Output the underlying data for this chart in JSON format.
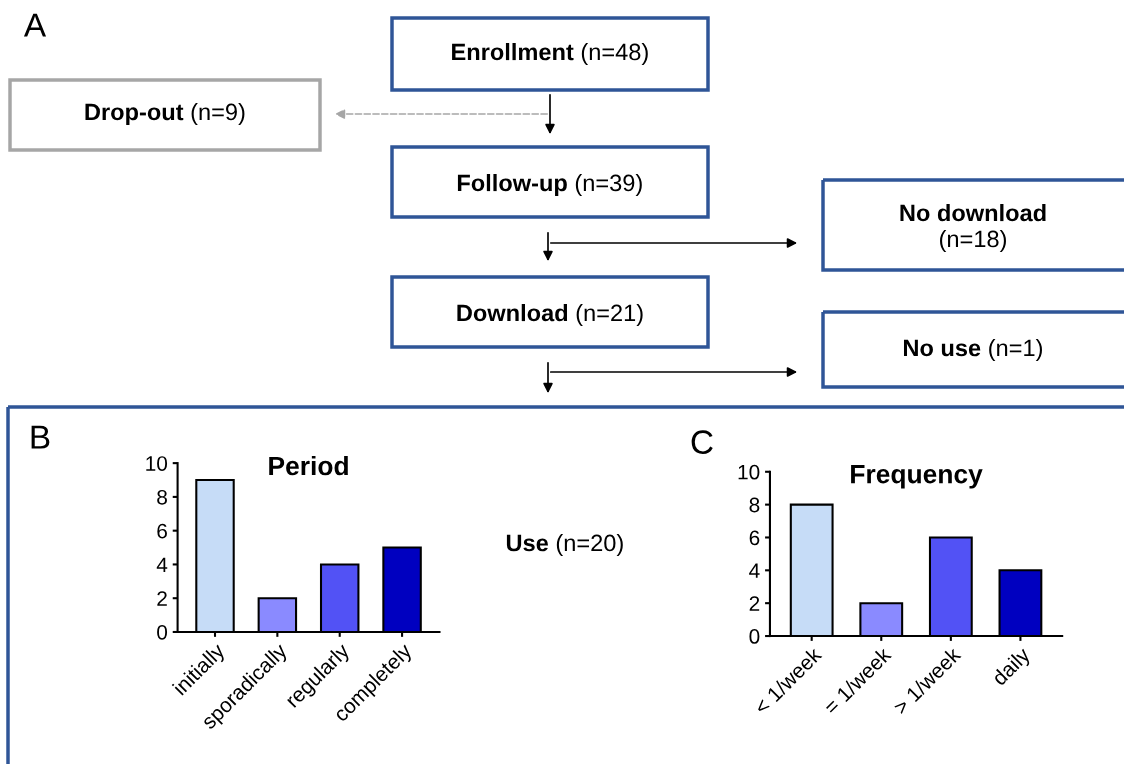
{
  "chart_data": [
    {
      "type": "other",
      "annotations": [
        "A",
        "Enrollment (n=48)",
        "Drop-out (n=9)",
        "Follow-up (n=39)",
        "No download\n(n=18)",
        "Download (n=21)",
        "No use (n=1)",
        "Use (n=20)"
      ]
    },
    {
      "type": "bar",
      "title": "Period",
      "annotations": [
        "B"
      ],
      "categories": [
        "initially",
        "sporadically",
        "regularly",
        "completely"
      ],
      "values": [
        9,
        2,
        4,
        5
      ],
      "colors": [
        "#c6dcf7",
        "#8a8aff",
        "#5252f5",
        "#0000c0"
      ],
      "ylim": [
        0,
        10
      ],
      "yticks": [
        0,
        2,
        4,
        6,
        8,
        10
      ],
      "grid": false
    },
    {
      "type": "bar",
      "title": "Frequency",
      "annotations": [
        "C"
      ],
      "categories": [
        "< 1/week",
        "= 1/week",
        "> 1/week",
        "daily"
      ],
      "values": [
        8,
        2,
        6,
        4
      ],
      "colors": [
        "#c6dcf7",
        "#8a8aff",
        "#5252f5",
        "#0000c0"
      ],
      "ylim": [
        0,
        10
      ],
      "yticks": [
        0,
        2,
        4,
        6,
        8,
        10
      ],
      "grid": false
    }
  ]
}
